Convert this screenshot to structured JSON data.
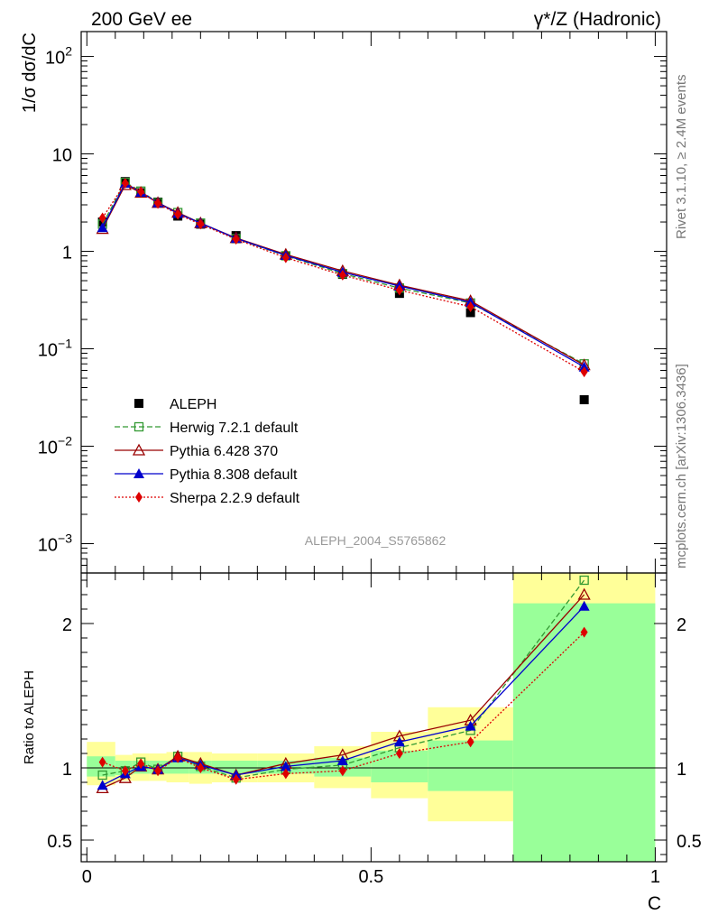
{
  "header": {
    "left_title": "200 GeV ee",
    "right_title": "γ*/Z (Hadronic)",
    "side_label_top": "Rivet 3.1.10, ≥ 2.4M events",
    "side_label_bottom": "mcplots.cern.ch [arXiv:1306.3436]",
    "analysis_id": "ALEPH_2004_S5765862"
  },
  "chart_data": [
    {
      "panel": "main",
      "type": "scatter",
      "ylabel": "1/σ  dσ/dC",
      "yscale": "log",
      "ylim": [
        0.0005,
        180
      ],
      "xlim": [
        -0.01,
        1.02
      ],
      "yticks": [
        {
          "value": 0.001,
          "base": "10",
          "exp": "−3"
        },
        {
          "value": 0.01,
          "base": "10",
          "exp": "−2"
        },
        {
          "value": 0.1,
          "base": "10",
          "exp": "−1"
        },
        {
          "value": 1,
          "base": "1",
          "exp": ""
        },
        {
          "value": 10,
          "base": "10",
          "exp": ""
        },
        {
          "value": 100,
          "base": "10",
          "exp": "2"
        }
      ],
      "x": [
        0.0275,
        0.0675,
        0.095,
        0.125,
        0.16,
        0.2,
        0.2625,
        0.35,
        0.45,
        0.55,
        0.675,
        0.875
      ],
      "series": [
        {
          "name": "ALEPH",
          "color": "#000000",
          "marker": "filled-square",
          "line": "none",
          "values": [
            2.0,
            5.2,
            4.0,
            3.2,
            2.3,
            1.9,
            1.45,
            0.9,
            0.58,
            0.37,
            0.235,
            0.03
          ]
        },
        {
          "name": "Herwig 7.2.1 default",
          "color": "#339933",
          "marker": "open-square",
          "line": "dashed",
          "values": [
            1.9,
            5.1,
            4.15,
            3.15,
            2.5,
            1.95,
            1.35,
            0.9,
            0.59,
            0.42,
            0.295,
            0.07
          ]
        },
        {
          "name": "Pythia 6.428 370",
          "color": "#990000",
          "marker": "open-triangle",
          "line": "solid",
          "values": [
            1.7,
            4.8,
            4.0,
            3.15,
            2.5,
            1.95,
            1.37,
            0.93,
            0.63,
            0.45,
            0.31,
            0.068
          ]
        },
        {
          "name": "Pythia 8.308 default",
          "color": "#0000cc",
          "marker": "filled-triangle",
          "line": "solid",
          "values": [
            1.75,
            5.0,
            4.05,
            3.15,
            2.45,
            1.95,
            1.36,
            0.91,
            0.61,
            0.44,
            0.3,
            0.065
          ]
        },
        {
          "name": "Sherpa 2.2.9 default",
          "color": "#dd0000",
          "marker": "filled-diamond",
          "line": "dotted",
          "values": [
            2.2,
            5.0,
            4.1,
            3.1,
            2.4,
            1.9,
            1.33,
            0.86,
            0.57,
            0.4,
            0.27,
            0.058
          ]
        }
      ]
    },
    {
      "panel": "ratio",
      "type": "line",
      "ylabel": "Ratio to ALEPH",
      "xlabel": "C",
      "ylim": [
        0.35,
        2.35
      ],
      "xlim": [
        -0.01,
        1.02
      ],
      "yticks": [
        0.5,
        1,
        2
      ],
      "xticks": [
        {
          "value": 0,
          "label": "0"
        },
        {
          "value": 0.5,
          "label": "0.5"
        },
        {
          "value": 1,
          "label": "1"
        }
      ],
      "reference_line": 1,
      "bins": [
        {
          "lo": 0.0,
          "hi": 0.05,
          "green": [
            0.94,
            1.08
          ],
          "yellow": [
            0.88,
            1.18
          ]
        },
        {
          "lo": 0.05,
          "hi": 0.08,
          "green": [
            0.95,
            1.05
          ],
          "yellow": [
            0.91,
            1.09
          ]
        },
        {
          "lo": 0.08,
          "hi": 0.11,
          "green": [
            0.96,
            1.05
          ],
          "yellow": [
            0.91,
            1.1
          ]
        },
        {
          "lo": 0.11,
          "hi": 0.14,
          "green": [
            0.96,
            1.05
          ],
          "yellow": [
            0.91,
            1.1
          ]
        },
        {
          "lo": 0.14,
          "hi": 0.18,
          "green": [
            0.96,
            1.05
          ],
          "yellow": [
            0.9,
            1.11
          ]
        },
        {
          "lo": 0.18,
          "hi": 0.22,
          "green": [
            0.96,
            1.05
          ],
          "yellow": [
            0.89,
            1.11
          ]
        },
        {
          "lo": 0.22,
          "hi": 0.3,
          "green": [
            0.96,
            1.05
          ],
          "yellow": [
            0.9,
            1.1
          ]
        },
        {
          "lo": 0.3,
          "hi": 0.4,
          "green": [
            0.96,
            1.05
          ],
          "yellow": [
            0.9,
            1.1
          ]
        },
        {
          "lo": 0.4,
          "hi": 0.5,
          "green": [
            0.94,
            1.07
          ],
          "yellow": [
            0.86,
            1.15
          ]
        },
        {
          "lo": 0.5,
          "hi": 0.6,
          "green": [
            0.9,
            1.12
          ],
          "yellow": [
            0.79,
            1.25
          ]
        },
        {
          "lo": 0.6,
          "hi": 0.75,
          "green": [
            0.84,
            1.19
          ],
          "yellow": [
            0.63,
            1.42
          ]
        },
        {
          "lo": 0.75,
          "hi": 1.0,
          "green": [
            0.0,
            2.14
          ],
          "yellow": [
            0.0,
            2.4
          ]
        }
      ],
      "x": [
        0.0275,
        0.0675,
        0.095,
        0.125,
        0.16,
        0.2,
        0.2625,
        0.35,
        0.45,
        0.55,
        0.675,
        0.875
      ],
      "series": [
        {
          "name": "Herwig 7.2.1 default",
          "color": "#339933",
          "marker": "open-square",
          "line": "dashed",
          "values": [
            0.95,
            0.98,
            1.04,
            0.99,
            1.08,
            1.01,
            0.93,
            0.99,
            1.02,
            1.14,
            1.26,
            2.3
          ]
        },
        {
          "name": "Pythia 6.428 370",
          "color": "#990000",
          "marker": "open-triangle",
          "line": "solid",
          "values": [
            0.86,
            0.93,
            1.01,
            0.99,
            1.08,
            1.03,
            0.95,
            1.03,
            1.09,
            1.22,
            1.33,
            2.2
          ]
        },
        {
          "name": "Pythia 8.308 default",
          "color": "#0000cc",
          "marker": "filled-triangle",
          "line": "solid",
          "values": [
            0.88,
            0.96,
            1.01,
            0.99,
            1.07,
            1.02,
            0.95,
            1.01,
            1.05,
            1.18,
            1.29,
            2.12
          ]
        },
        {
          "name": "Sherpa 2.2.9 default",
          "color": "#dd0000",
          "marker": "filled-diamond",
          "line": "dotted",
          "values": [
            1.04,
            0.98,
            1.03,
            0.98,
            1.07,
            1.0,
            0.92,
            0.96,
            0.98,
            1.1,
            1.18,
            1.94
          ]
        }
      ]
    }
  ],
  "legend_placement": "lower-left"
}
